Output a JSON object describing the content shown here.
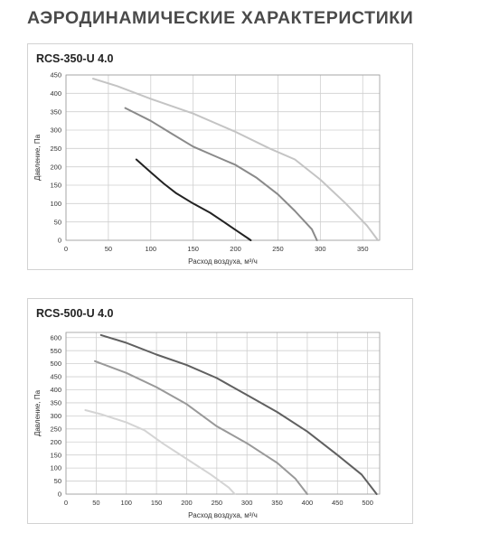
{
  "page_title": "АЭРОДИНАМИЧЕСКИЕ ХАРАКТЕРИСТИКИ",
  "chart_data": [
    {
      "type": "line",
      "title": "RCS-350-U 4.0",
      "xlabel": "Расход воздуха, м³/ч",
      "ylabel": "Давление, Па",
      "xlim": [
        0,
        370
      ],
      "ylim": [
        0,
        450
      ],
      "xticks": [
        0,
        50,
        100,
        150,
        200,
        250,
        300,
        350
      ],
      "yticks": [
        0,
        50,
        100,
        150,
        200,
        250,
        300,
        350,
        400,
        450
      ],
      "grid": true,
      "series": [
        {
          "color": "#222222",
          "x": [
            83,
            100,
            115,
            130,
            150,
            170,
            185,
            200,
            215,
            218
          ],
          "y": [
            220,
            185,
            155,
            128,
            100,
            75,
            52,
            28,
            5,
            0
          ]
        },
        {
          "color": "#8a8a8a",
          "x": [
            70,
            100,
            125,
            150,
            175,
            200,
            225,
            250,
            270,
            290,
            296
          ],
          "y": [
            360,
            325,
            290,
            255,
            230,
            205,
            170,
            125,
            80,
            30,
            0
          ]
        },
        {
          "color": "#c4c4c4",
          "x": [
            32,
            60,
            100,
            150,
            200,
            240,
            270,
            300,
            330,
            355,
            368
          ],
          "y": [
            440,
            420,
            385,
            345,
            295,
            250,
            220,
            165,
            100,
            40,
            0
          ]
        }
      ]
    },
    {
      "type": "line",
      "title": "RCS-500-U 4.0",
      "xlabel": "Расход воздуха, м³/ч",
      "ylabel": "Давление, Па",
      "xlim": [
        0,
        520
      ],
      "ylim": [
        0,
        620
      ],
      "xticks": [
        0,
        50,
        100,
        150,
        200,
        250,
        300,
        350,
        400,
        450,
        500
      ],
      "yticks": [
        0,
        50,
        100,
        150,
        200,
        250,
        300,
        350,
        400,
        450,
        500,
        550,
        600
      ],
      "grid": true,
      "series": [
        {
          "color": "#606060",
          "x": [
            58,
            100,
            150,
            200,
            250,
            300,
            350,
            400,
            450,
            490,
            515
          ],
          "y": [
            610,
            580,
            535,
            495,
            445,
            380,
            315,
            240,
            150,
            75,
            0
          ]
        },
        {
          "color": "#999999",
          "x": [
            48,
            100,
            150,
            200,
            250,
            300,
            350,
            380,
            400
          ],
          "y": [
            510,
            465,
            410,
            345,
            260,
            195,
            120,
            60,
            0
          ]
        },
        {
          "color": "#d4d4d4",
          "x": [
            32,
            60,
            100,
            130,
            160,
            200,
            240,
            270,
            280
          ],
          "y": [
            322,
            305,
            275,
            245,
            195,
            135,
            75,
            25,
            0
          ]
        }
      ]
    }
  ]
}
